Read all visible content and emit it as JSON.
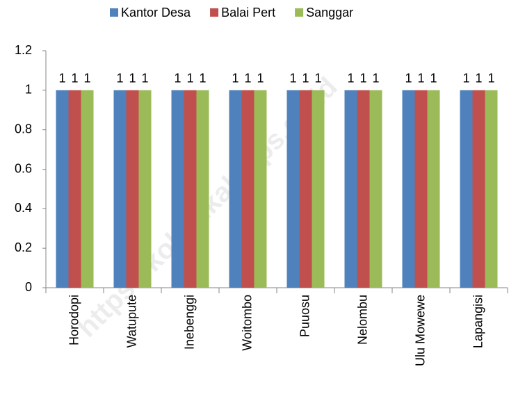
{
  "chart_data": {
    "type": "bar",
    "categories": [
      "Horodopi",
      "Watupute",
      "Inebenggi",
      "Woitombo",
      "Puuosu",
      "Nelombu",
      "Ulu Mowewe",
      "Lapangisi"
    ],
    "series": [
      {
        "name": "Kantor Desa",
        "color": "#4f81bd",
        "values": [
          1,
          1,
          1,
          1,
          1,
          1,
          1,
          1
        ]
      },
      {
        "name": "Balai Pert",
        "color": "#c0504d",
        "values": [
          1,
          1,
          1,
          1,
          1,
          1,
          1,
          1
        ]
      },
      {
        "name": "Sanggar",
        "color": "#9bbb59",
        "values": [
          1,
          1,
          1,
          1,
          1,
          1,
          1,
          1
        ]
      }
    ],
    "ylim": [
      0,
      1.2
    ],
    "yticks": [
      0,
      0.2,
      0.4,
      0.6,
      0.8,
      1,
      1.2
    ],
    "grid": false,
    "legend": "top",
    "data_labels": true,
    "watermark": "https://koltimkab.bps.go.id"
  }
}
